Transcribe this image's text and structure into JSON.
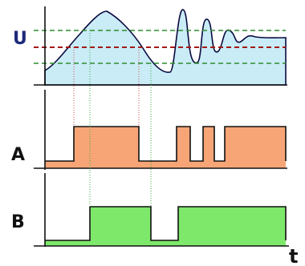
{
  "labels": {
    "u": "U",
    "a": "A",
    "b": "B",
    "t": "t"
  },
  "colors": {
    "u_fill": "#c9ecf6",
    "u_line": "#0a0a40",
    "a_fill": "#f7a577",
    "b_fill": "#7ee86a",
    "u_label": "#1f2a7a",
    "threshold_upper": "#2e8b2e",
    "threshold_mid": "#a31818",
    "threshold_lower": "#2e8b2e",
    "guide_red": "#d24a4a",
    "guide_green": "#3aa83a"
  }
}
